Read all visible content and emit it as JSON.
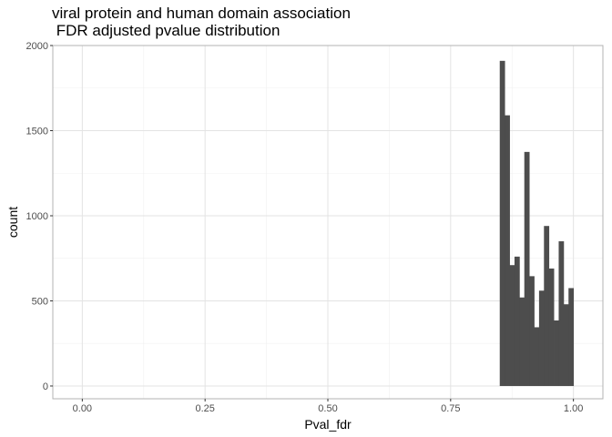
{
  "chart_data": {
    "type": "bar",
    "title_line1": "viral protein and human domain association",
    "title_line2": " FDR adjusted pvalue distribution",
    "xlabel": "Pval_fdr",
    "ylabel": "count",
    "xlim": [
      -0.06,
      1.06
    ],
    "ylim": [
      -75,
      2000
    ],
    "x_ticks": [
      0,
      0.25,
      0.5,
      0.75,
      1
    ],
    "x_tick_labels": [
      "0.00",
      "0.25",
      "0.50",
      "0.75",
      "1.00"
    ],
    "y_ticks": [
      0,
      500,
      1000,
      1500,
      2000
    ],
    "y_tick_labels": [
      "0",
      "500",
      "1000",
      "1500",
      "2000"
    ],
    "grid": true,
    "bar_color": "#4d4d4d",
    "bins": [
      {
        "x0": 0.85,
        "x1": 0.86,
        "count": 1910
      },
      {
        "x0": 0.86,
        "x1": 0.87,
        "count": 1590
      },
      {
        "x0": 0.87,
        "x1": 0.88,
        "count": 710
      },
      {
        "x0": 0.88,
        "x1": 0.89,
        "count": 760
      },
      {
        "x0": 0.89,
        "x1": 0.9,
        "count": 520
      },
      {
        "x0": 0.9,
        "x1": 0.91,
        "count": 1375
      },
      {
        "x0": 0.91,
        "x1": 0.92,
        "count": 645
      },
      {
        "x0": 0.92,
        "x1": 0.93,
        "count": 345
      },
      {
        "x0": 0.93,
        "x1": 0.94,
        "count": 560
      },
      {
        "x0": 0.94,
        "x1": 0.95,
        "count": 940
      },
      {
        "x0": 0.95,
        "x1": 0.96,
        "count": 690
      },
      {
        "x0": 0.96,
        "x1": 0.97,
        "count": 385
      },
      {
        "x0": 0.97,
        "x1": 0.98,
        "count": 850
      },
      {
        "x0": 0.98,
        "x1": 0.99,
        "count": 480
      },
      {
        "x0": 0.99,
        "x1": 1.0,
        "count": 575
      }
    ]
  }
}
